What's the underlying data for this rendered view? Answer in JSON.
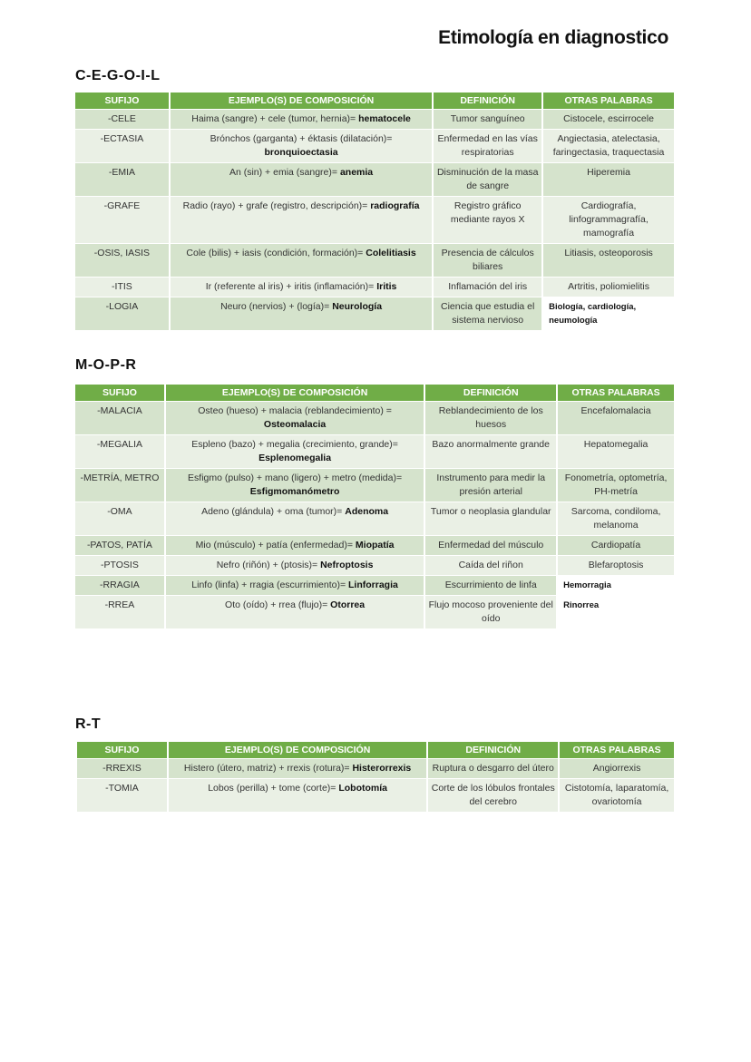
{
  "title": "Etimología en diagnostico",
  "headers": [
    "SUFIJO",
    "EJEMPLO(S) DE COMPOSICIÓN",
    "DEFINICIÓN",
    "OTRAS PALABRAS"
  ],
  "sections": [
    {
      "title": "C-E-G-O-I-L",
      "rows": [
        {
          "sufijo": "-CELE",
          "example": "Haima (sangre) + cele (tumor, hernia)= ",
          "example_bold": "hematocele",
          "definicion": "Tumor sanguíneo",
          "otras": "Cistocele, escirrocele"
        },
        {
          "sufijo": "-ECTASIA",
          "example": "Brónchos (garganta) + éktasis (dilatación)= ",
          "example_bold": "bronquioectasia",
          "definicion": "Enfermedad en las vías respiratorias",
          "otras": "Angiectasia, atelectasia, faringectasia, traquectasia"
        },
        {
          "sufijo": "-EMIA",
          "example": "An (sin) + emia (sangre)= ",
          "example_bold": "anemia",
          "definicion": "Disminución de la masa de sangre",
          "otras": "Hiperemia"
        },
        {
          "sufijo": "-GRAFE",
          "example": "Radio (rayo) + grafe (registro, descripción)= ",
          "example_bold": "radiografía",
          "definicion": "Registro gráfico mediante rayos X",
          "otras": "Cardiografía, linfogrammagrafía, mamografía"
        },
        {
          "sufijo": "-OSIS, IASIS",
          "example": "Cole (bilis) + iasis (condición, formación)= ",
          "example_bold": "Colelitiasis",
          "definicion": "Presencia de cálculos biliares",
          "otras": "Litiasis, osteoporosis"
        },
        {
          "sufijo": "-ITIS",
          "example": "Ir (referente al iris) + iritis (inflamación)= ",
          "example_bold": "Iritis",
          "definicion": "Inflamación del iris",
          "otras": "Artritis, poliomielitis"
        },
        {
          "sufijo": "-LOGIA",
          "example": "Neuro (nervios) + (logía)= ",
          "example_bold": "Neurología",
          "definicion": "Ciencia que estudia el sistema nervioso",
          "otras": "Biología, cardiología, neumología",
          "otras_handwritten": true
        }
      ]
    },
    {
      "title": "M-O-P-R",
      "rows": [
        {
          "sufijo": "-MALACIA",
          "example": "Osteo (hueso) + malacia (reblandecimiento) = ",
          "example_bold": "Osteomalacia",
          "definicion": "Reblandecimiento de los huesos",
          "otras": "Encefalomalacia"
        },
        {
          "sufijo": "-MEGALIA",
          "example": "Espleno (bazo) + megalia (crecimiento, grande)= ",
          "example_bold": "Esplenomegalia",
          "definicion": "Bazo anormalmente grande",
          "otras": "Hepatomegalia"
        },
        {
          "sufijo": "-METRÍA, METRO",
          "example": "Esfigmo (pulso) + mano (ligero) + metro (medida)= ",
          "example_bold": "Esfigmomanómetro",
          "definicion": "Instrumento para medir la presión arterial",
          "otras": "Fonometría, optometría, PH-metría"
        },
        {
          "sufijo": "-OMA",
          "example": "Adeno (glándula) + oma (tumor)= ",
          "example_bold": "Adenoma",
          "definicion": "Tumor o neoplasia glandular",
          "otras": "Sarcoma, condiloma, melanoma"
        },
        {
          "sufijo": "-PATOS, PATÍA",
          "example": "Mio (músculo) + patía (enfermedad)= ",
          "example_bold": "Miopatía",
          "definicion": "Enfermedad del músculo",
          "otras": "Cardiopatía"
        },
        {
          "sufijo": "-PTOSIS",
          "example": "Nefro (riñón) + (ptosis)= ",
          "example_bold": "Nefroptosis",
          "definicion": "Caída del riñon",
          "otras": "Blefaroptosis"
        },
        {
          "sufijo": "-RRAGIA",
          "example": "Linfo (linfa) + rragia (escurrimiento)= ",
          "example_bold": "Linforragia",
          "definicion": "Escurrimiento de linfa",
          "otras": "Hemorragia",
          "otras_handwritten": true
        },
        {
          "sufijo": "-RREA",
          "example": "Oto (oído) + rrea (flujo)= ",
          "example_bold": "Otorrea",
          "definicion": "Flujo mocoso proveniente del oído",
          "otras": "Rinorrea",
          "otras_handwritten": true
        }
      ]
    },
    {
      "title": "R-T",
      "rows": [
        {
          "sufijo": "-RREXIS",
          "example": "Histero (útero, matriz) + rrexis (rotura)= ",
          "example_bold": "Histerorrexis",
          "definicion": "Ruptura o desgarro del útero",
          "otras": "Angiorrexis"
        },
        {
          "sufijo": "-TOMIA",
          "example": "Lobos (perilla) + tome (corte)= ",
          "example_bold": "Lobotomía",
          "definicion": "Corte de los lóbulos frontales del cerebro",
          "otras": "Cistotomía, laparatomía, ovariotomía"
        }
      ]
    }
  ],
  "colors": {
    "header": "#70ad47",
    "row_odd": "#d5e3cc",
    "row_even": "#eaf0e5"
  }
}
